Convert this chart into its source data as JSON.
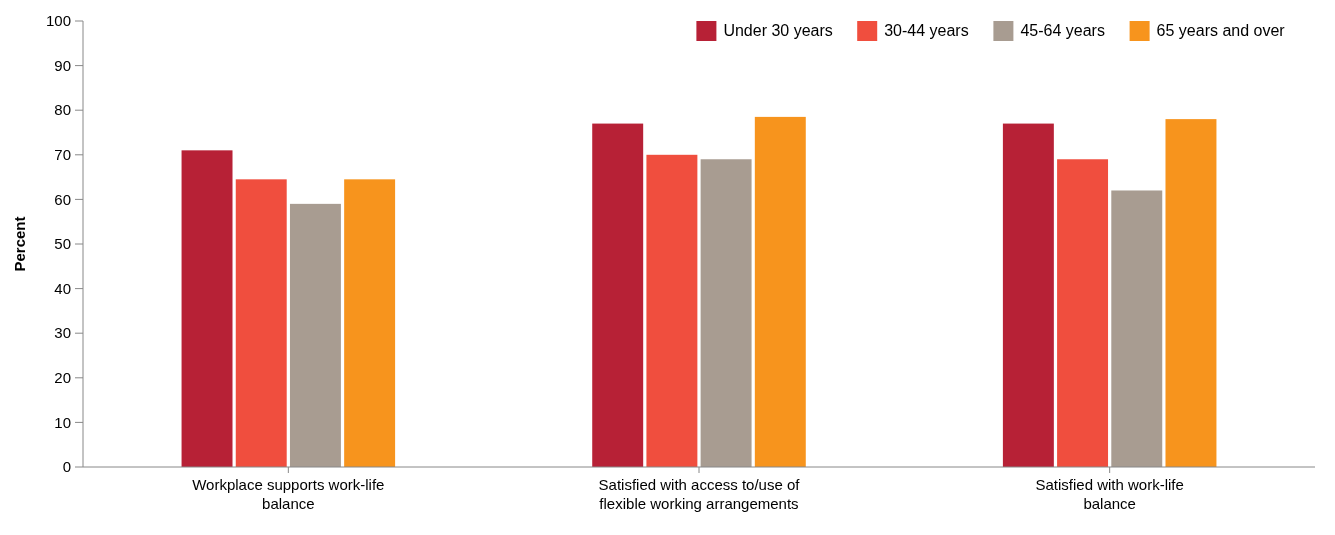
{
  "chart_data": {
    "type": "bar",
    "ylabel": "Percent",
    "categories": [
      "Workplace supports work-life balance",
      "Satisfied with access to/use of flexible working arrangements",
      "Satisfied with work-life balance"
    ],
    "series": [
      {
        "name": "Under 30 years",
        "color": "#b72136",
        "values": [
          71,
          77,
          77
        ]
      },
      {
        "name": "30-44 years",
        "color": "#f04e3e",
        "values": [
          64.5,
          70,
          69
        ]
      },
      {
        "name": "45-64 years",
        "color": "#a89c91",
        "values": [
          59,
          69,
          62
        ]
      },
      {
        "name": "65 years and over",
        "color": "#f7941d",
        "values": [
          64.5,
          78.5,
          78
        ]
      }
    ],
    "ylim": [
      0,
      100
    ],
    "yticks": [
      0,
      10,
      20,
      30,
      40,
      50,
      60,
      70,
      80,
      90,
      100
    ],
    "grid": false,
    "legend": "top right"
  }
}
